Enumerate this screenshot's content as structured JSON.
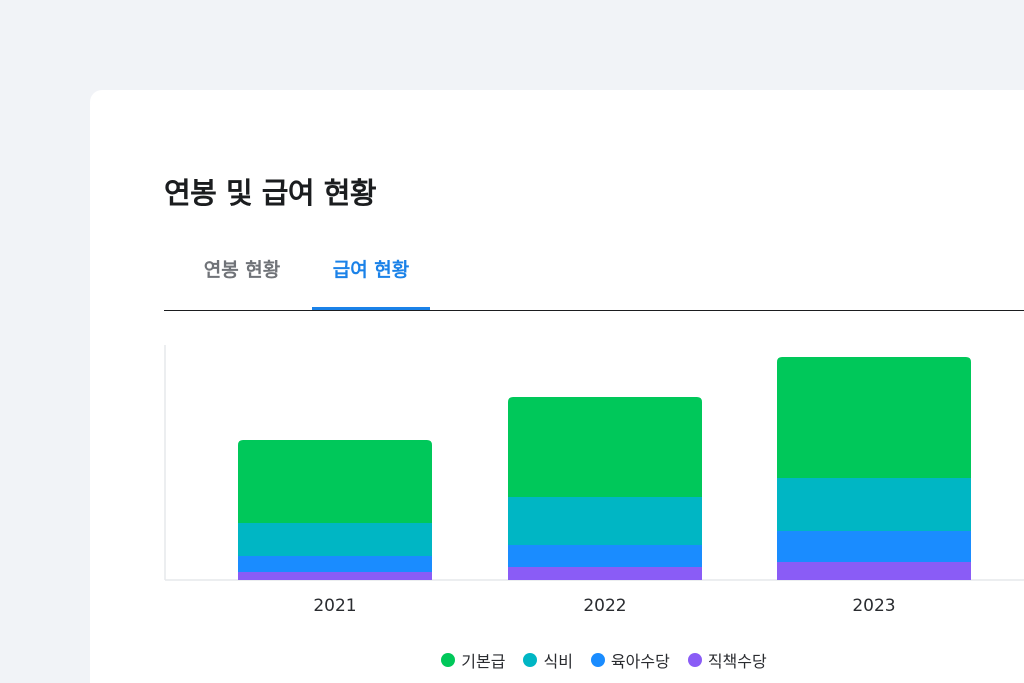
{
  "card": {
    "title": "연봉 및 급여 현황",
    "tabs": [
      {
        "label": "연봉 현황",
        "active": false
      },
      {
        "label": "급여 현황",
        "active": true
      }
    ]
  },
  "colors": {
    "accent": "#1b82e8",
    "axis": "#e6e8ec"
  },
  "chart_data": {
    "type": "bar",
    "stacked": true,
    "categories": [
      "2021",
      "2022",
      "2023"
    ],
    "series": [
      {
        "name": "직책수당",
        "color": "#8a5cf6",
        "values": [
          8,
          13,
          18
        ]
      },
      {
        "name": "육아수당",
        "color": "#1a8cff",
        "values": [
          16,
          22,
          31
        ]
      },
      {
        "name": "식비",
        "color": "#00b6c4",
        "values": [
          33,
          48,
          53
        ]
      },
      {
        "name": "기본급",
        "color": "#00c85a",
        "values": [
          83,
          100,
          121
        ]
      }
    ],
    "legend": [
      "기본급",
      "식비",
      "육아수당",
      "직책수당"
    ],
    "grid": false,
    "legend_position": "bottom"
  }
}
